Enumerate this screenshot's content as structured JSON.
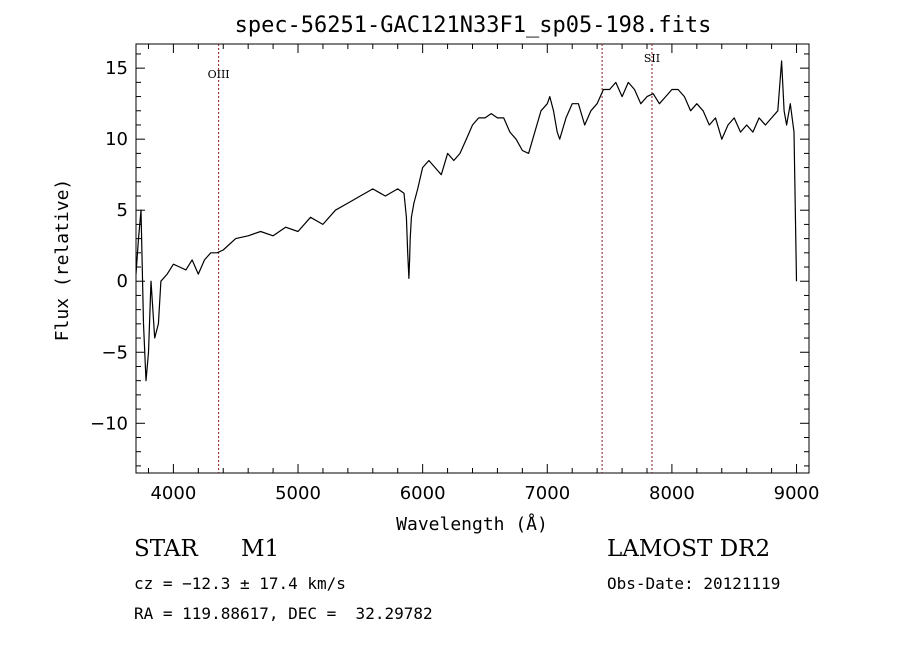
{
  "chart_data": {
    "type": "line",
    "title": "spec-56251-GAC121N33F1_sp05-198.fits",
    "xlabel": "Wavelength (Å)",
    "ylabel": "Flux (relative)",
    "xlim": [
      3700,
      9100
    ],
    "ylim": [
      -13.5,
      16.7
    ],
    "xticks": [
      4000,
      5000,
      6000,
      7000,
      8000,
      9000
    ],
    "yticks": [
      -10,
      -5,
      0,
      5,
      10,
      15
    ],
    "xtick_labels": [
      "4000",
      "5000",
      "6000",
      "7000",
      "8000",
      "9000"
    ],
    "ytick_labels": [
      "−10",
      "−5",
      "0",
      "5",
      "10",
      "15"
    ],
    "grid": false,
    "series": [
      {
        "color": "#000000",
        "x": [
          3700,
          3720,
          3740,
          3760,
          3780,
          3800,
          3820,
          3850,
          3880,
          3900,
          3950,
          4000,
          4050,
          4100,
          4150,
          4200,
          4250,
          4300,
          4350,
          4400,
          4500,
          4600,
          4700,
          4800,
          4900,
          5000,
          5100,
          5200,
          5300,
          5400,
          5500,
          5600,
          5700,
          5800,
          5850,
          5870,
          5880,
          5890,
          5895,
          5900,
          5910,
          5930,
          5960,
          6000,
          6050,
          6100,
          6150,
          6200,
          6250,
          6300,
          6350,
          6400,
          6450,
          6500,
          6550,
          6600,
          6650,
          6700,
          6750,
          6800,
          6850,
          6900,
          6950,
          7000,
          7020,
          7050,
          7080,
          7100,
          7150,
          7200,
          7250,
          7300,
          7350,
          7400,
          7450,
          7500,
          7550,
          7600,
          7650,
          7700,
          7750,
          7800,
          7850,
          7900,
          7950,
          8000,
          8050,
          8100,
          8150,
          8200,
          8250,
          8300,
          8350,
          8400,
          8450,
          8500,
          8550,
          8600,
          8650,
          8700,
          8750,
          8800,
          8850,
          8880,
          8900,
          8920,
          8950,
          8980,
          9000
        ],
        "y": [
          0.5,
          3,
          5,
          -3,
          -7,
          -5,
          0,
          -4,
          -3,
          0,
          0.5,
          1.2,
          1.0,
          0.8,
          1.5,
          0.5,
          1.5,
          2.0,
          2.0,
          2.2,
          3.0,
          3.2,
          3.5,
          3.2,
          3.8,
          3.5,
          4.5,
          4.0,
          5.0,
          5.5,
          6.0,
          6.5,
          6.0,
          6.5,
          6.2,
          4.5,
          2.0,
          0.2,
          1.5,
          3.0,
          4.5,
          5.5,
          6.5,
          8.0,
          8.5,
          8.0,
          7.5,
          9.0,
          8.5,
          9.0,
          10.0,
          11.0,
          11.5,
          11.5,
          11.8,
          11.5,
          11.5,
          10.5,
          10.0,
          9.2,
          9.0,
          10.5,
          12.0,
          12.5,
          13.0,
          12.0,
          10.5,
          10.0,
          11.5,
          12.5,
          12.5,
          11.0,
          12.0,
          12.5,
          13.5,
          13.5,
          14.0,
          13.0,
          14.0,
          13.5,
          12.5,
          13.0,
          13.2,
          12.5,
          13.0,
          13.5,
          13.5,
          13.0,
          12.0,
          12.5,
          12.0,
          11.0,
          11.5,
          10.0,
          11.0,
          11.5,
          10.5,
          11.0,
          10.5,
          11.5,
          11.0,
          11.5,
          12.0,
          15.5,
          12.0,
          11.0,
          12.5,
          10.5,
          0.0
        ]
      }
    ],
    "vlines": [
      {
        "x": 4363,
        "label": "OIII"
      },
      {
        "x": 7440,
        "label": ""
      },
      {
        "x": 7840,
        "label": "SII"
      }
    ]
  },
  "info": {
    "object_class": "STAR",
    "subclass": "M1",
    "survey": "LAMOST DR2",
    "cz": "cz = −12.3 ± 17.4 km/s",
    "obs_date": "Obs-Date: 20121119",
    "radec": "RA = 119.88617, DEC =  32.29782"
  }
}
